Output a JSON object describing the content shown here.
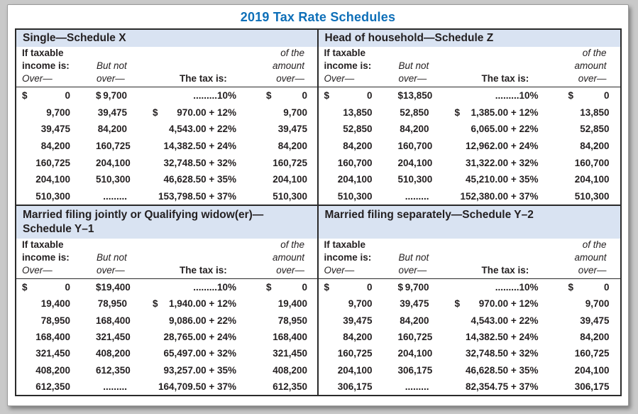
{
  "title": "2019 Tax Rate Schedules",
  "colors": {
    "title_blue": "#0e6fb8",
    "band_background": "#d9e3f2",
    "text": "#231f20",
    "border": "#2a2a2a"
  },
  "column_headers": {
    "if_taxable": "If taxable",
    "income_is": "income is:",
    "over_dash": "Over—",
    "but_not": "But not",
    "over_dash2": "over—",
    "the_tax_is": "The tax is:",
    "of_the": "of the",
    "amount": "amount",
    "over_dash3": "over—"
  },
  "schedules": [
    {
      "name": "single",
      "heading_lines": [
        "Single—Schedule X",
        ""
      ],
      "rows": [
        [
          "$",
          "0",
          "$",
          "9,700",
          "",
          ".........10%",
          "$",
          "0"
        ],
        [
          "",
          "9,700",
          "",
          "39,475",
          "$",
          "970.00 + 12%",
          "",
          "9,700"
        ],
        [
          "",
          "39,475",
          "",
          "84,200",
          "",
          "4,543.00 + 22%",
          "",
          "39,475"
        ],
        [
          "",
          "84,200",
          "",
          "160,725",
          "",
          "14,382.50 + 24%",
          "",
          "84,200"
        ],
        [
          "",
          "160,725",
          "",
          "204,100",
          "",
          "32,748.50 + 32%",
          "",
          "160,725"
        ],
        [
          "",
          "204,100",
          "",
          "510,300",
          "",
          "46,628.50 + 35%",
          "",
          "204,100"
        ],
        [
          "",
          "510,300",
          "",
          ".........",
          "",
          "153,798.50 + 37%",
          "",
          "510,300"
        ]
      ]
    },
    {
      "name": "head-of-household",
      "heading_lines": [
        "Head of household—Schedule Z",
        ""
      ],
      "rows": [
        [
          "$",
          "0",
          "$",
          "13,850",
          "",
          ".........10%",
          "$",
          "0"
        ],
        [
          "",
          "13,850",
          "",
          "52,850",
          "$",
          "1,385.00 + 12%",
          "",
          "13,850"
        ],
        [
          "",
          "52,850",
          "",
          "84,200",
          "",
          "6,065.00 + 22%",
          "",
          "52,850"
        ],
        [
          "",
          "84,200",
          "",
          "160,700",
          "",
          "12,962.00 + 24%",
          "",
          "84,200"
        ],
        [
          "",
          "160,700",
          "",
          "204,100",
          "",
          "31,322.00 + 32%",
          "",
          "160,700"
        ],
        [
          "",
          "204,100",
          "",
          "510,300",
          "",
          "45,210.00 + 35%",
          "",
          "204,100"
        ],
        [
          "",
          "510,300",
          "",
          ".........",
          "",
          "152,380.00 + 37%",
          "",
          "510,300"
        ]
      ]
    },
    {
      "name": "married-filing-jointly",
      "heading_lines": [
        "Married filing jointly or Qualifying widow(er)—",
        "Schedule Y–1"
      ],
      "rows": [
        [
          "$",
          "0",
          "$",
          "19,400",
          "",
          ".........10%",
          "$",
          "0"
        ],
        [
          "",
          "19,400",
          "",
          "78,950",
          "$",
          "1,940.00 + 12%",
          "",
          "19,400"
        ],
        [
          "",
          "78,950",
          "",
          "168,400",
          "",
          "9,086.00 + 22%",
          "",
          "78,950"
        ],
        [
          "",
          "168,400",
          "",
          "321,450",
          "",
          "28,765.00 + 24%",
          "",
          "168,400"
        ],
        [
          "",
          "321,450",
          "",
          "408,200",
          "",
          "65,497.00 + 32%",
          "",
          "321,450"
        ],
        [
          "",
          "408,200",
          "",
          "612,350",
          "",
          "93,257.00 + 35%",
          "",
          "408,200"
        ],
        [
          "",
          "612,350",
          "",
          ".........",
          "",
          "164,709.50 + 37%",
          "",
          "612,350"
        ]
      ]
    },
    {
      "name": "married-filing-separately",
      "heading_lines": [
        "Married filing separately—Schedule Y–2",
        ""
      ],
      "rows": [
        [
          "$",
          "0",
          "$",
          "9,700",
          "",
          ".........10%",
          "$",
          "0"
        ],
        [
          "",
          "9,700",
          "",
          "39,475",
          "$",
          "970.00 + 12%",
          "",
          "9,700"
        ],
        [
          "",
          "39,475",
          "",
          "84,200",
          "",
          "4,543.00 + 22%",
          "",
          "39,475"
        ],
        [
          "",
          "84,200",
          "",
          "160,725",
          "",
          "14,382.50 + 24%",
          "",
          "84,200"
        ],
        [
          "",
          "160,725",
          "",
          "204,100",
          "",
          "32,748.50 + 32%",
          "",
          "160,725"
        ],
        [
          "",
          "204,100",
          "",
          "306,175",
          "",
          "46,628.50 + 35%",
          "",
          "204,100"
        ],
        [
          "",
          "306,175",
          "",
          ".........",
          "",
          "82,354.75 + 37%",
          "",
          "306,175"
        ]
      ]
    }
  ]
}
